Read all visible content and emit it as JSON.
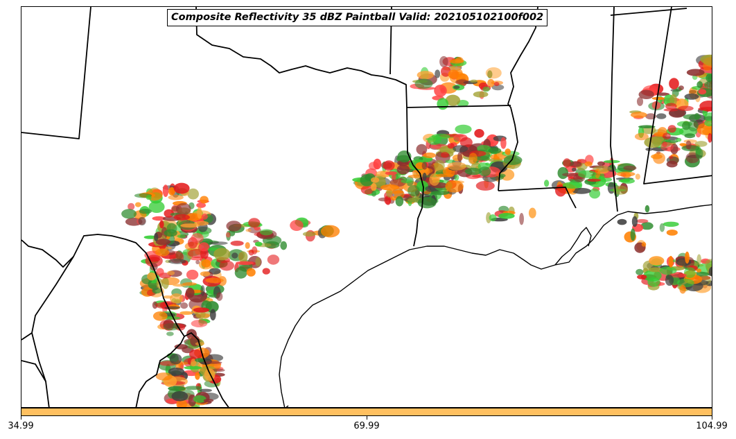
{
  "title": "Composite Reflectivity 35 dBZ Paintball Valid: 202105102100f002",
  "paintball_colors": [
    "#e31a1c",
    "#ff7f00",
    "#33cc33",
    "#2e8b2e",
    "#a0a030",
    "#8b2f2f",
    "#ff4040",
    "#ffa030",
    "#404040"
  ],
  "colorbar": {
    "color": "#ffc060"
  },
  "colorbar_ticks": [
    "34.99",
    "69.99",
    "104.99"
  ]
}
